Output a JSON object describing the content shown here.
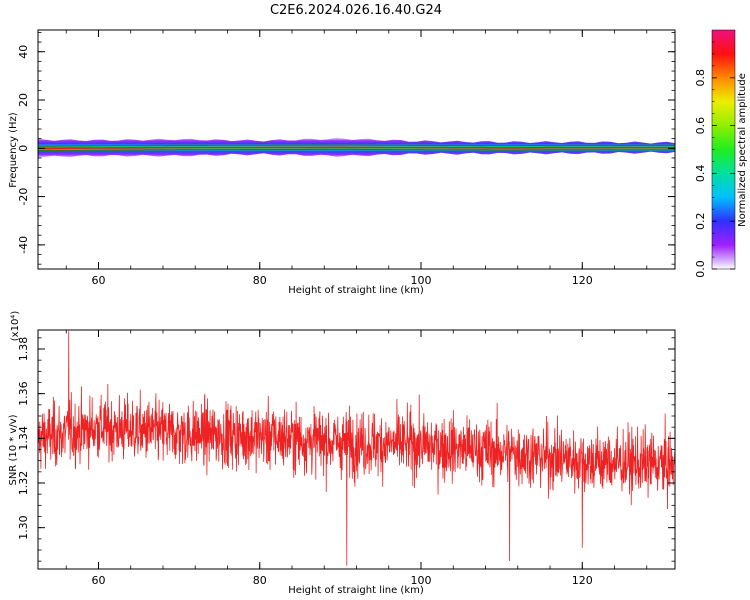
{
  "figure_title": "C2E6.2024.026.16.40.G24",
  "colors": {
    "snr_line": "#ee2222",
    "track_center": "#2a7a22",
    "frame": "#000000"
  },
  "chart_data": [
    {
      "type": "heatmap",
      "title": "",
      "xlabel": "Height of straight line (km)",
      "ylabel": "Frequency (Hz)",
      "xlim": [
        52.5,
        131.5
      ],
      "ylim": [
        -50,
        49
      ],
      "x_ticks": [
        60,
        80,
        100,
        120
      ],
      "x_tick_labels": [
        "60",
        "80",
        "100",
        "120"
      ],
      "y_ticks": [
        -40,
        -20,
        0,
        20,
        40
      ],
      "y_tick_labels": [
        "-40",
        "-20",
        "0",
        "20",
        "40"
      ],
      "description_of_data": "Spectral energy concentrated near 0 Hz across the full height range",
      "center_frequency": [
        [
          53,
          0.0
        ],
        [
          70,
          0.3
        ],
        [
          90,
          0.4
        ],
        [
          110,
          0.2
        ],
        [
          131,
          0.3
        ]
      ],
      "band_halfwidth_hz": [
        [
          53,
          3.5
        ],
        [
          60,
          3.2
        ],
        [
          70,
          3.4
        ],
        [
          80,
          2.8
        ],
        [
          90,
          3.6
        ],
        [
          100,
          2.6
        ],
        [
          110,
          2.4
        ],
        [
          120,
          2.3
        ],
        [
          131,
          2.0
        ]
      ],
      "colorbar": {
        "label": "Normalized spectral amplitude",
        "range": [
          0,
          1
        ],
        "ticks": [
          0.0,
          0.2,
          0.4,
          0.6,
          0.8
        ],
        "tick_labels": [
          "0.0",
          "0.2",
          "0.4",
          "0.6",
          "0.8"
        ]
      },
      "grid": false
    },
    {
      "type": "line",
      "title": "",
      "xlabel": "Height of straight line (km)",
      "ylabel": "SNR (10 * v/v)",
      "y_scale_label": "(x10⁴)",
      "xlim": [
        52.5,
        131.5
      ],
      "ylim": [
        1.2815,
        1.3885
      ],
      "x_ticks": [
        60,
        80,
        100,
        120
      ],
      "x_tick_labels": [
        "60",
        "80",
        "100",
        "120"
      ],
      "y_ticks": [
        1.3,
        1.32,
        1.34,
        1.36,
        1.38
      ],
      "y_tick_labels": [
        "1.30",
        "1.32",
        "1.34",
        "1.36",
        "1.38"
      ],
      "series_points": 2200,
      "trend": [
        [
          52.5,
          1.34
        ],
        [
          60,
          1.345
        ],
        [
          70,
          1.342
        ],
        [
          80,
          1.341
        ],
        [
          90,
          1.338
        ],
        [
          100,
          1.337
        ],
        [
          110,
          1.334
        ],
        [
          120,
          1.33
        ],
        [
          131.5,
          1.328
        ]
      ],
      "noise_std": 0.0095,
      "notable_points": [
        [
          56.3,
          1.388
        ],
        [
          90.8,
          1.283
        ],
        [
          111.0,
          1.285
        ],
        [
          120.0,
          1.291
        ]
      ],
      "grid": false
    }
  ]
}
